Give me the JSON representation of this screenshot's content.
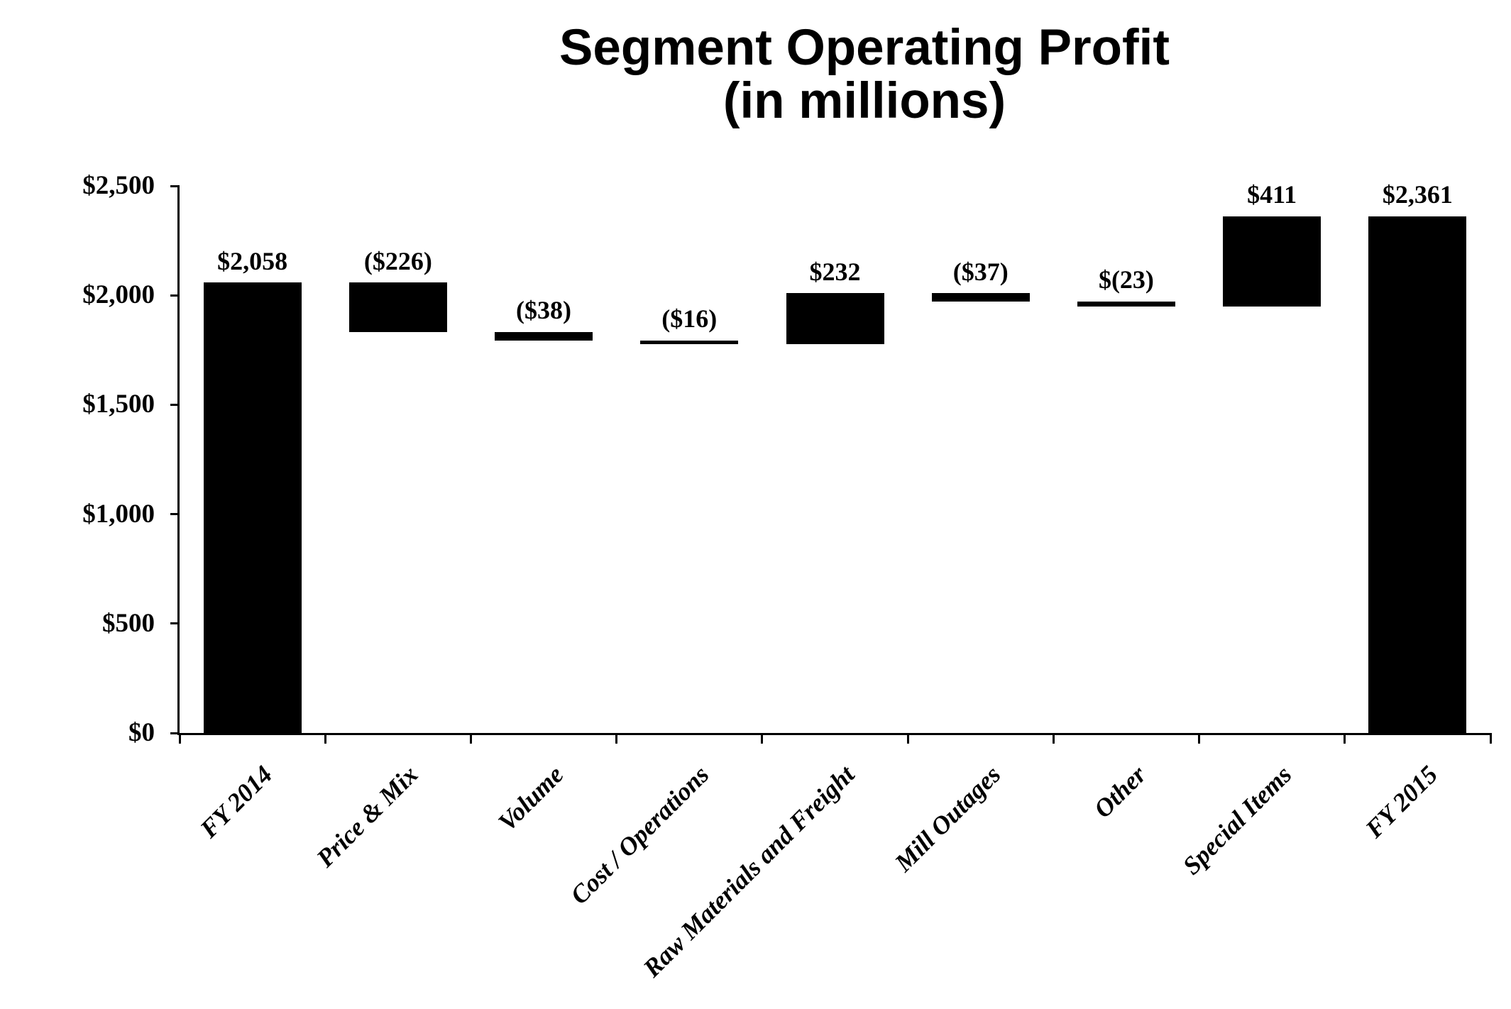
{
  "title": {
    "line1": "Segment Operating Profit",
    "line2": "(in millions)"
  },
  "chart_data": {
    "type": "bar",
    "subtype": "waterfall",
    "title": "Segment Operating Profit (in millions)",
    "xlabel": "",
    "ylabel": "",
    "grid": false,
    "legend": "none",
    "background_color": "#ffffff",
    "bar_color": "#000000",
    "axis_color": "#000000",
    "categories": [
      "FY 2014",
      "Price & Mix",
      "Volume",
      "Cost / Operations",
      "Raw Materials and Freight",
      "Mill Outages",
      "Other",
      "Special Items",
      "FY 2015"
    ],
    "bars": [
      {
        "label": "FY 2014",
        "value": 2058,
        "start": 0,
        "end": 2058,
        "value_label": "$2,058"
      },
      {
        "label": "Price & Mix",
        "value": -226,
        "start": 2058,
        "end": 1832,
        "value_label": "($226)"
      },
      {
        "label": "Volume",
        "value": -38,
        "start": 1832,
        "end": 1794,
        "value_label": "($38)"
      },
      {
        "label": "Cost / Operations",
        "value": -16,
        "start": 1794,
        "end": 1778,
        "value_label": "($16)"
      },
      {
        "label": "Raw Materials and Freight",
        "value": 232,
        "start": 1778,
        "end": 2010,
        "value_label": "$232"
      },
      {
        "label": "Mill Outages",
        "value": -37,
        "start": 2010,
        "end": 1973,
        "value_label": "($37)"
      },
      {
        "label": "Other",
        "value": -23,
        "start": 1973,
        "end": 1950,
        "value_label": "$(23)"
      },
      {
        "label": "Special Items",
        "value": 411,
        "start": 1950,
        "end": 2361,
        "value_label": "$411"
      },
      {
        "label": "FY 2015",
        "value": 2361,
        "start": 0,
        "end": 2361,
        "value_label": "$2,361"
      }
    ],
    "y_axis": {
      "min": 0,
      "max": 2500,
      "ticks": [
        {
          "value": 0,
          "label": "$0"
        },
        {
          "value": 500,
          "label": "$500"
        },
        {
          "value": 1000,
          "label": "$1,000"
        },
        {
          "value": 1500,
          "label": "$1,500"
        },
        {
          "value": 2000,
          "label": "$2,000"
        },
        {
          "value": 2500,
          "label": "$2,500"
        }
      ]
    }
  }
}
